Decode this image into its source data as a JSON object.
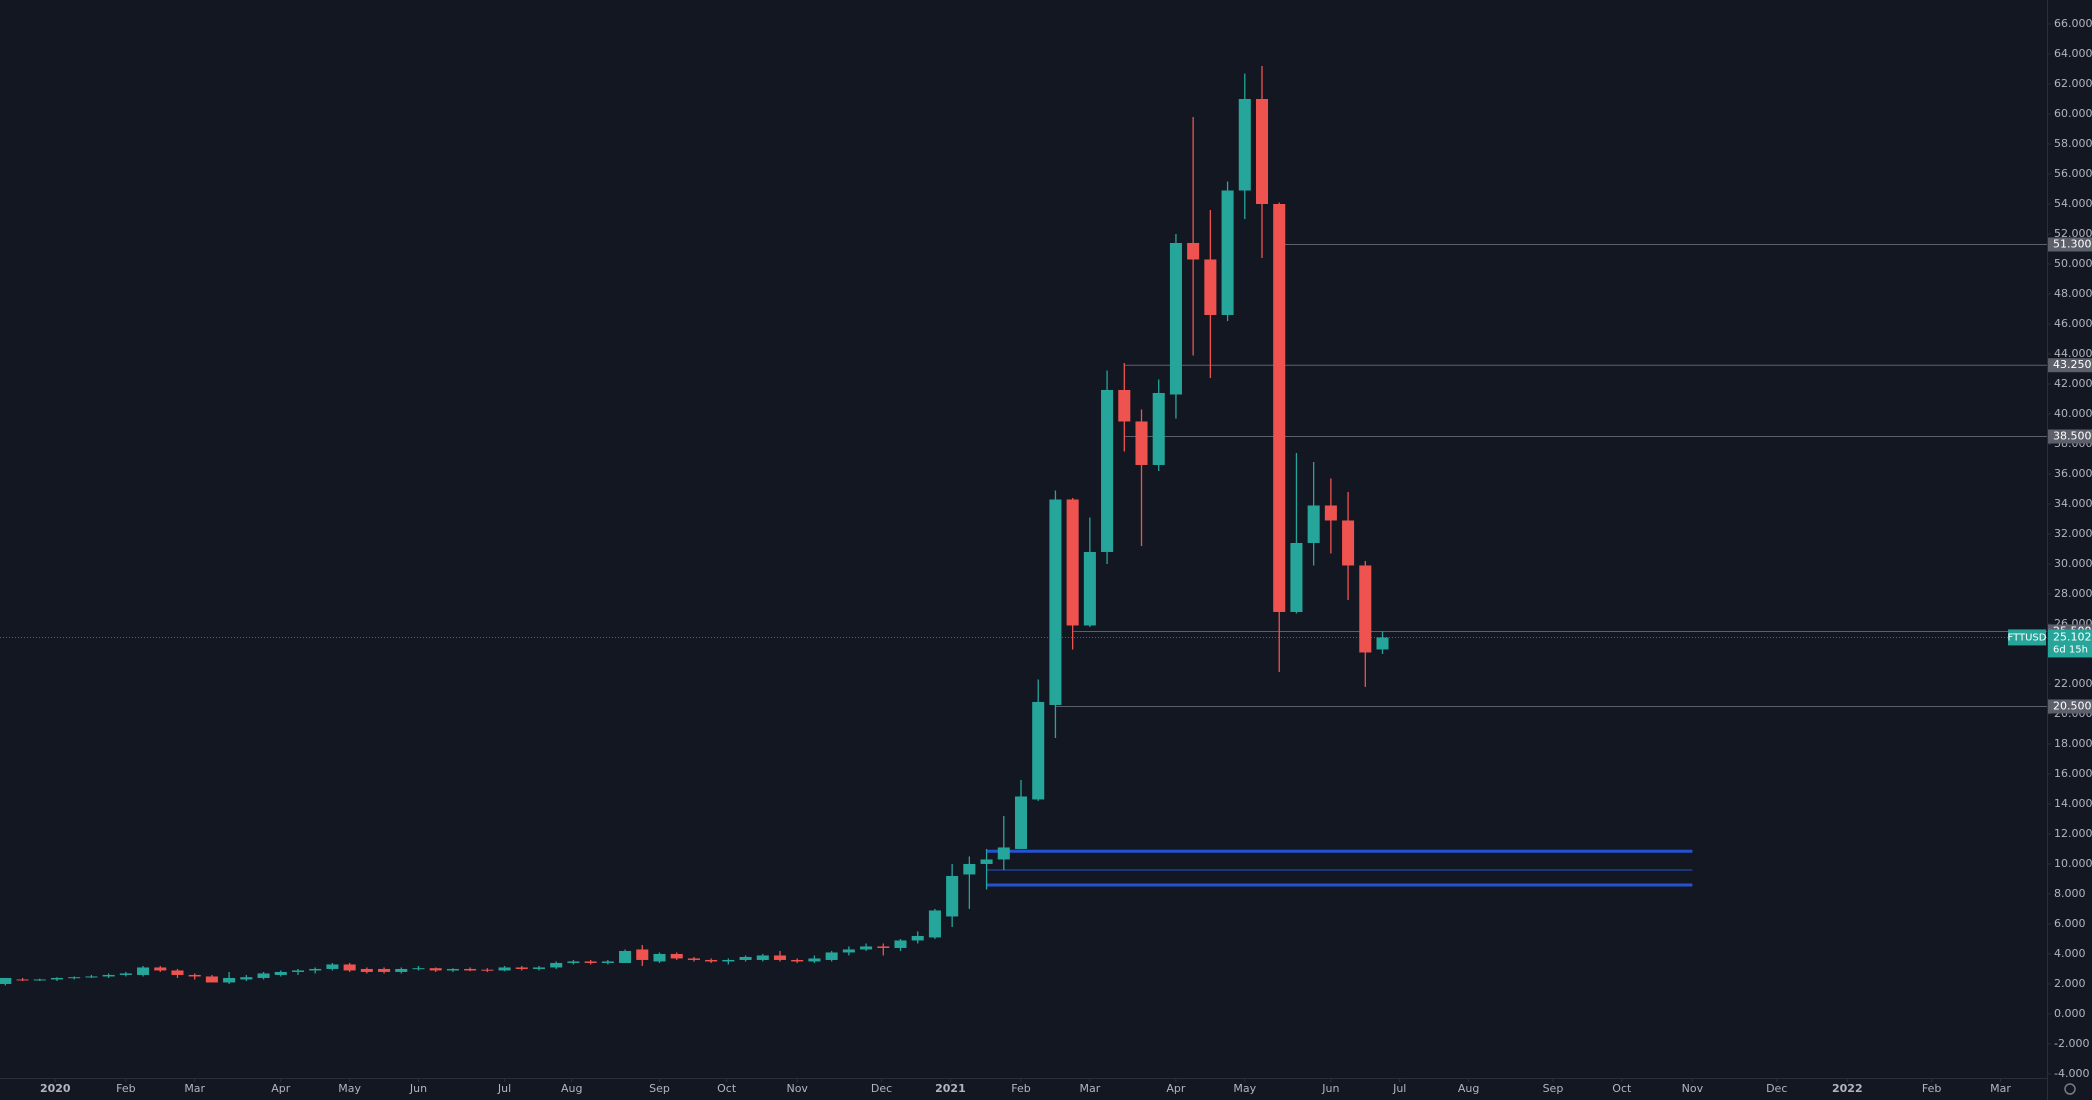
{
  "chart_data": {
    "type": "candlestick",
    "symbol": "FTTUSD",
    "countdown": "6d 15h",
    "up_color": "#26a69a",
    "down_color": "#ef5350",
    "last_price": {
      "value": 25.102,
      "label": "25.102"
    },
    "open": [
      2.0,
      2.3,
      2.25,
      2.3,
      2.4,
      2.45,
      2.5,
      2.6,
      2.6,
      3.1,
      2.9,
      2.6,
      2.5,
      2.1,
      2.3,
      2.4,
      2.6,
      2.8,
      2.9,
      3.0,
      3.3,
      3.0,
      3.0,
      2.8,
      3.0,
      3.05,
      2.9,
      3.0,
      2.95,
      2.9,
      3.1,
      3.0,
      3.1,
      3.4,
      3.5,
      3.4,
      3.4,
      4.3,
      3.5,
      4.0,
      3.7,
      3.6,
      3.5,
      3.6,
      3.6,
      3.9,
      3.6,
      3.5,
      3.6,
      4.1,
      4.3,
      4.5,
      4.4,
      4.9,
      5.1,
      6.5,
      9.3,
      10.0,
      10.3,
      11.0,
      14.3,
      20.6,
      34.3,
      25.9,
      30.8,
      41.6,
      39.5,
      36.6,
      41.3,
      51.4,
      50.3,
      46.6,
      54.9,
      61.0,
      54.0,
      26.8,
      31.4,
      33.9,
      32.9,
      29.9,
      24.3
    ],
    "high": [
      2.4,
      2.4,
      2.35,
      2.45,
      2.5,
      2.6,
      2.7,
      2.8,
      3.2,
      3.2,
      3.0,
      2.7,
      2.6,
      2.8,
      2.6,
      2.8,
      2.9,
      3.0,
      3.1,
      3.4,
      3.4,
      3.1,
      3.1,
      3.1,
      3.2,
      3.1,
      3.05,
      3.1,
      3.05,
      3.2,
      3.2,
      3.2,
      3.5,
      3.6,
      3.6,
      3.6,
      4.3,
      4.6,
      4.1,
      4.1,
      3.8,
      3.7,
      3.7,
      3.9,
      4.0,
      4.2,
      3.7,
      3.9,
      4.2,
      4.5,
      4.7,
      4.7,
      5.0,
      5.5,
      7.0,
      10.0,
      10.5,
      11.0,
      13.2,
      15.6,
      22.3,
      34.9,
      34.4,
      33.1,
      42.9,
      43.4,
      40.3,
      42.3,
      52.0,
      59.8,
      53.6,
      55.5,
      62.7,
      63.2,
      54.1,
      37.4,
      36.8,
      35.7,
      34.8,
      30.2,
      25.5
    ],
    "low": [
      1.9,
      2.2,
      2.2,
      2.2,
      2.3,
      2.4,
      2.4,
      2.5,
      2.5,
      2.8,
      2.4,
      2.3,
      2.1,
      2.0,
      2.2,
      2.3,
      2.5,
      2.6,
      2.7,
      2.9,
      2.8,
      2.7,
      2.7,
      2.7,
      2.9,
      2.8,
      2.8,
      2.85,
      2.8,
      2.85,
      2.9,
      2.9,
      3.0,
      3.3,
      3.3,
      3.3,
      3.4,
      3.2,
      3.4,
      3.6,
      3.5,
      3.4,
      3.3,
      3.5,
      3.5,
      3.5,
      3.4,
      3.4,
      3.5,
      3.9,
      4.2,
      3.9,
      4.2,
      4.7,
      5.0,
      5.8,
      7.0,
      8.3,
      9.6,
      11.0,
      14.2,
      18.4,
      24.3,
      25.8,
      30.0,
      37.5,
      31.2,
      36.2,
      39.7,
      43.9,
      42.4,
      46.2,
      53.0,
      50.4,
      22.8,
      26.7,
      29.9,
      30.7,
      27.6,
      21.8,
      24.0
    ],
    "close": [
      2.4,
      2.25,
      2.3,
      2.4,
      2.45,
      2.5,
      2.6,
      2.7,
      3.1,
      2.9,
      2.6,
      2.5,
      2.1,
      2.4,
      2.45,
      2.7,
      2.8,
      2.9,
      3.0,
      3.3,
      2.9,
      2.8,
      2.8,
      3.0,
      3.05,
      2.9,
      3.0,
      2.9,
      2.9,
      3.1,
      3.0,
      3.1,
      3.4,
      3.5,
      3.4,
      3.5,
      4.2,
      3.6,
      4.0,
      3.7,
      3.6,
      3.5,
      3.6,
      3.8,
      3.9,
      3.6,
      3.5,
      3.7,
      4.1,
      4.3,
      4.5,
      4.4,
      4.9,
      5.2,
      6.9,
      9.2,
      10.0,
      10.3,
      11.1,
      14.5,
      20.8,
      34.3,
      25.9,
      30.8,
      41.6,
      39.5,
      36.6,
      41.4,
      51.4,
      50.3,
      46.6,
      54.9,
      61.0,
      54.0,
      26.8,
      31.4,
      33.9,
      32.9,
      29.9,
      24.1,
      25.1
    ],
    "levels": [
      {
        "value": 51.3,
        "label": "51.300",
        "start": 74
      },
      {
        "value": 43.25,
        "label": "43.250",
        "start": 65
      },
      {
        "value": 38.5,
        "label": "38.500",
        "start": 65
      },
      {
        "value": 25.5,
        "label": "25.500",
        "start": 62
      },
      {
        "value": 20.5,
        "label": "20.500",
        "start": 61
      }
    ],
    "zones": [
      {
        "value": 10.85,
        "start": 57,
        "end": 98,
        "style": "thick"
      },
      {
        "value": 9.6,
        "start": 57,
        "end": 98,
        "style": "thin"
      },
      {
        "value": 8.6,
        "start": 57,
        "end": 98,
        "style": "thick"
      }
    ],
    "zone_color": "#2962ff",
    "level_color": "#5d606b",
    "xlim": [
      -0.31,
      118.6
    ],
    "xticks": [
      {
        "value": 2.9,
        "label": "2020"
      },
      {
        "value": 7.0,
        "label": "Feb"
      },
      {
        "value": 11.0,
        "label": "Mar"
      },
      {
        "value": 16.0,
        "label": "Apr"
      },
      {
        "value": 20.0,
        "label": "May"
      },
      {
        "value": 24.0,
        "label": "Jun"
      },
      {
        "value": 29.0,
        "label": "Jul"
      },
      {
        "value": 32.9,
        "label": "Aug"
      },
      {
        "value": 38.0,
        "label": "Sep"
      },
      {
        "value": 41.9,
        "label": "Oct"
      },
      {
        "value": 46.0,
        "label": "Nov"
      },
      {
        "value": 50.9,
        "label": "Dec"
      },
      {
        "value": 54.9,
        "label": "2021"
      },
      {
        "value": 59.0,
        "label": "Feb"
      },
      {
        "value": 63.0,
        "label": "Mar"
      },
      {
        "value": 68.0,
        "label": "Apr"
      },
      {
        "value": 72.0,
        "label": "May"
      },
      {
        "value": 77.0,
        "label": "Jun"
      },
      {
        "value": 81.0,
        "label": "Jul"
      },
      {
        "value": 85.0,
        "label": "Aug"
      },
      {
        "value": 89.9,
        "label": "Sep"
      },
      {
        "value": 93.9,
        "label": "Oct"
      },
      {
        "value": 98.0,
        "label": "Nov"
      },
      {
        "value": 102.9,
        "label": "Dec"
      },
      {
        "value": 107.0,
        "label": "2022"
      },
      {
        "value": 111.9,
        "label": "Feb"
      },
      {
        "value": 115.9,
        "label": "Mar"
      }
    ],
    "ylim": [
      -4.27,
      67.6
    ],
    "yticks": [
      {
        "value": -4,
        "label": "-4.000"
      },
      {
        "value": -2,
        "label": "-2.000"
      },
      {
        "value": 0,
        "label": "0.000"
      },
      {
        "value": 2,
        "label": "2.000"
      },
      {
        "value": 4,
        "label": "4.000"
      },
      {
        "value": 6,
        "label": "6.000"
      },
      {
        "value": 8,
        "label": "8.000"
      },
      {
        "value": 10,
        "label": "10.000"
      },
      {
        "value": 12,
        "label": "12.000"
      },
      {
        "value": 14,
        "label": "14.000"
      },
      {
        "value": 16,
        "label": "16.000"
      },
      {
        "value": 18,
        "label": "18.000"
      },
      {
        "value": 20,
        "label": "20.000"
      },
      {
        "value": 22,
        "label": "22.000"
      },
      {
        "value": 24,
        "label": "24.000"
      },
      {
        "value": 26,
        "label": "26.000"
      },
      {
        "value": 28,
        "label": "28.000"
      },
      {
        "value": 30,
        "label": "30.000"
      },
      {
        "value": 32,
        "label": "32.000"
      },
      {
        "value": 34,
        "label": "34.000"
      },
      {
        "value": 36,
        "label": "36.000"
      },
      {
        "value": 38,
        "label": "38.000"
      },
      {
        "value": 40,
        "label": "40.000"
      },
      {
        "value": 42,
        "label": "42.000"
      },
      {
        "value": 44,
        "label": "44.000"
      },
      {
        "value": 46,
        "label": "46.000"
      },
      {
        "value": 48,
        "label": "48.000"
      },
      {
        "value": 50,
        "label": "50.000"
      },
      {
        "value": 52,
        "label": "52.000"
      },
      {
        "value": 54,
        "label": "54.000"
      },
      {
        "value": 56,
        "label": "56.000"
      },
      {
        "value": 58,
        "label": "58.000"
      },
      {
        "value": 60,
        "label": "60.000"
      },
      {
        "value": 62,
        "label": "62.000"
      },
      {
        "value": 64,
        "label": "64.000"
      },
      {
        "value": 66,
        "label": "66.000"
      }
    ]
  }
}
